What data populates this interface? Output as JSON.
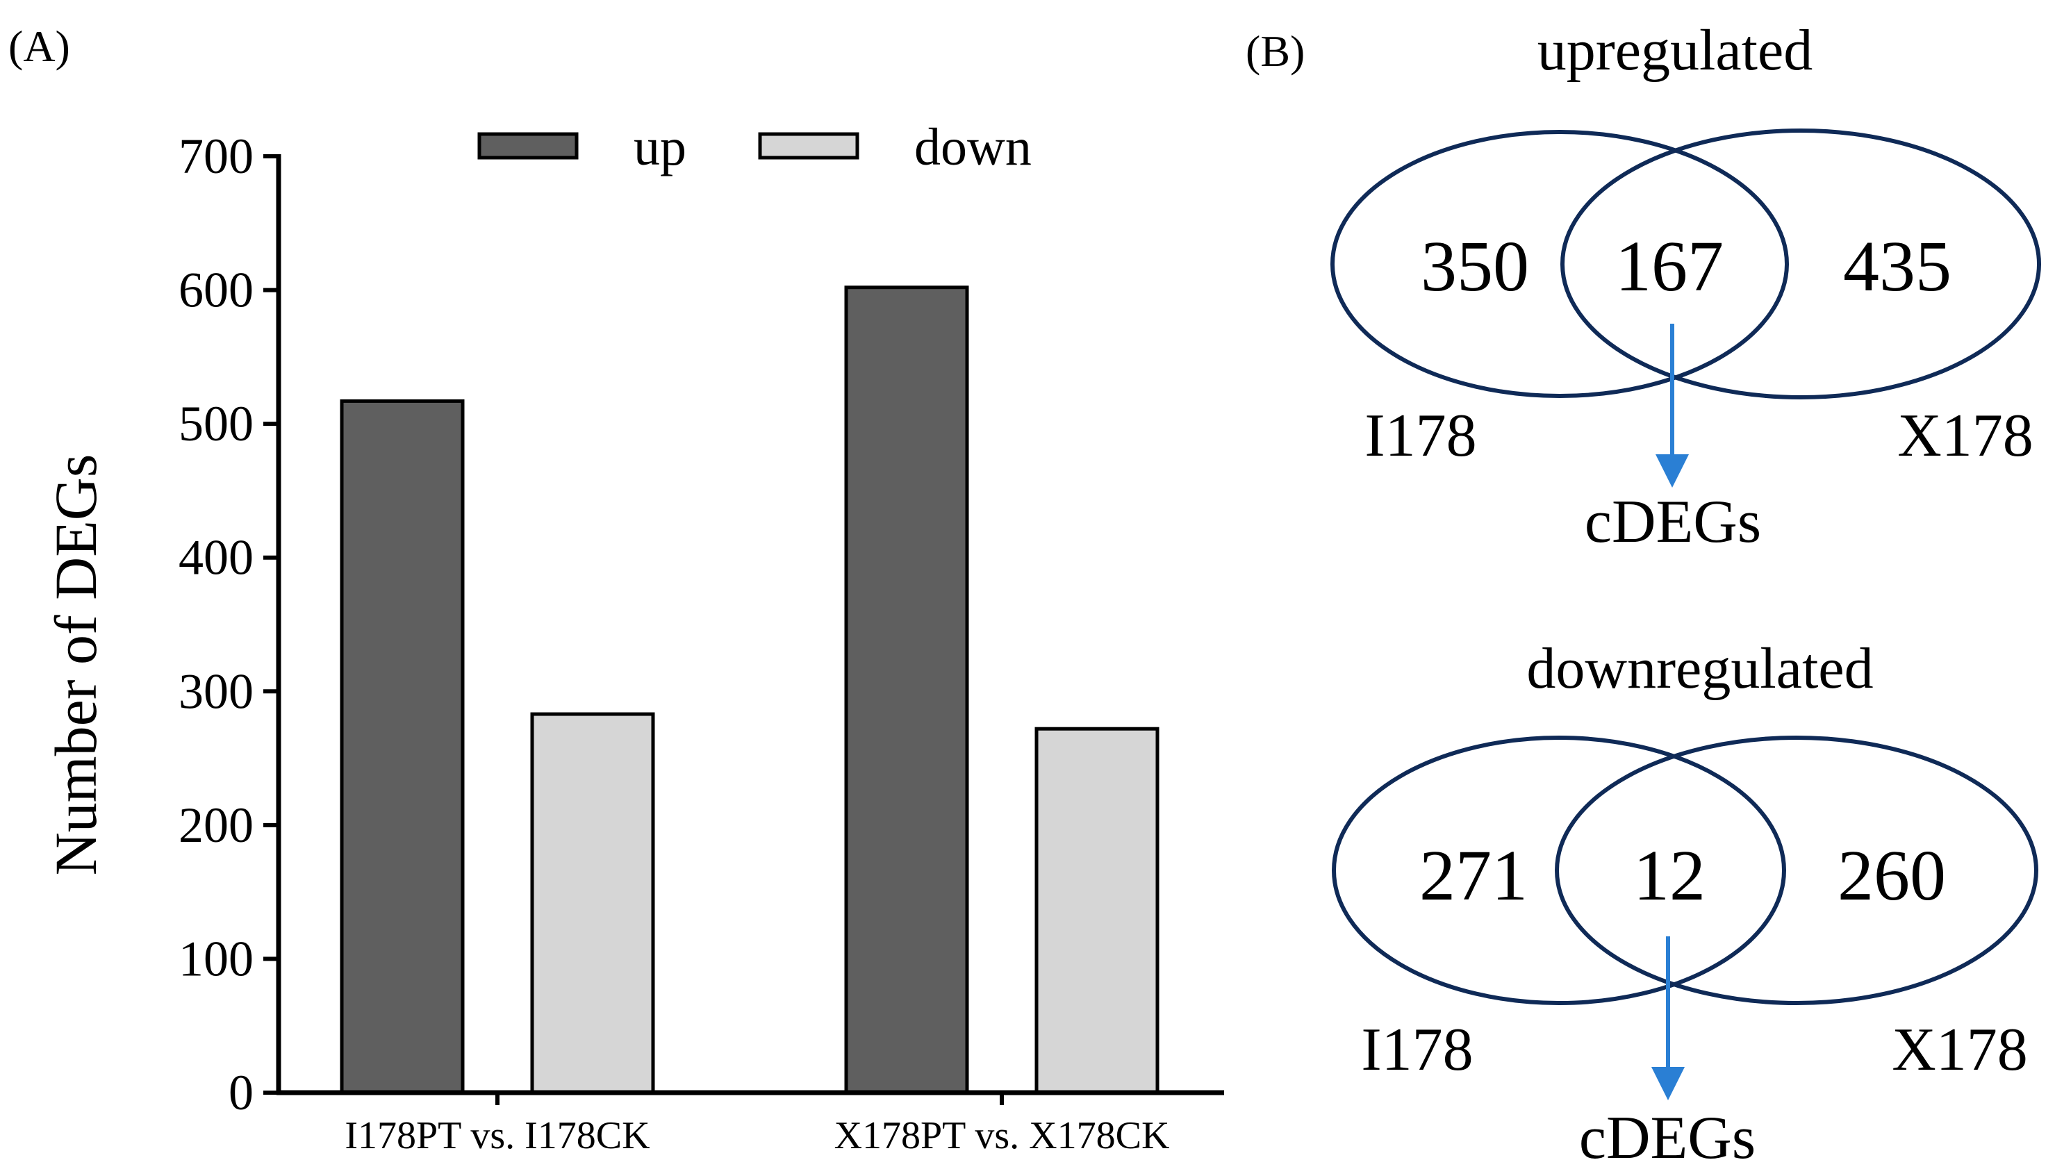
{
  "panel_labels": {
    "a": "(A)",
    "b": "(B)"
  },
  "chart_data": {
    "type": "bar",
    "title": "",
    "xlabel": "",
    "ylabel": "Number of DEGs",
    "ylim": [
      0,
      700
    ],
    "yticks": [
      "0",
      "100",
      "200",
      "300",
      "400",
      "500",
      "600",
      "700"
    ],
    "categories": [
      "I178PT vs. I178CK",
      "X178PT vs. X178CK"
    ],
    "series": [
      {
        "name": "up",
        "values": [
          517,
          602
        ],
        "color": "#5f5f5f"
      },
      {
        "name": "down",
        "values": [
          283,
          272
        ],
        "color": "#d6d6d6"
      }
    ],
    "legend_position": "top"
  },
  "venn_up": {
    "title": "upregulated",
    "left_only": "350",
    "overlap": "167",
    "right_only": "435",
    "left_set": "I178",
    "right_set": "X178",
    "arrow_label": "cDEGs"
  },
  "venn_down": {
    "title": "downregulated",
    "left_only": "271",
    "overlap": "12",
    "right_only": "260",
    "left_set": "I178",
    "right_set": "X178",
    "arrow_label": "cDEGs"
  },
  "colors": {
    "venn_stroke": "#0f2a57",
    "arrow": "#2a7fd4",
    "axis": "#000000"
  }
}
